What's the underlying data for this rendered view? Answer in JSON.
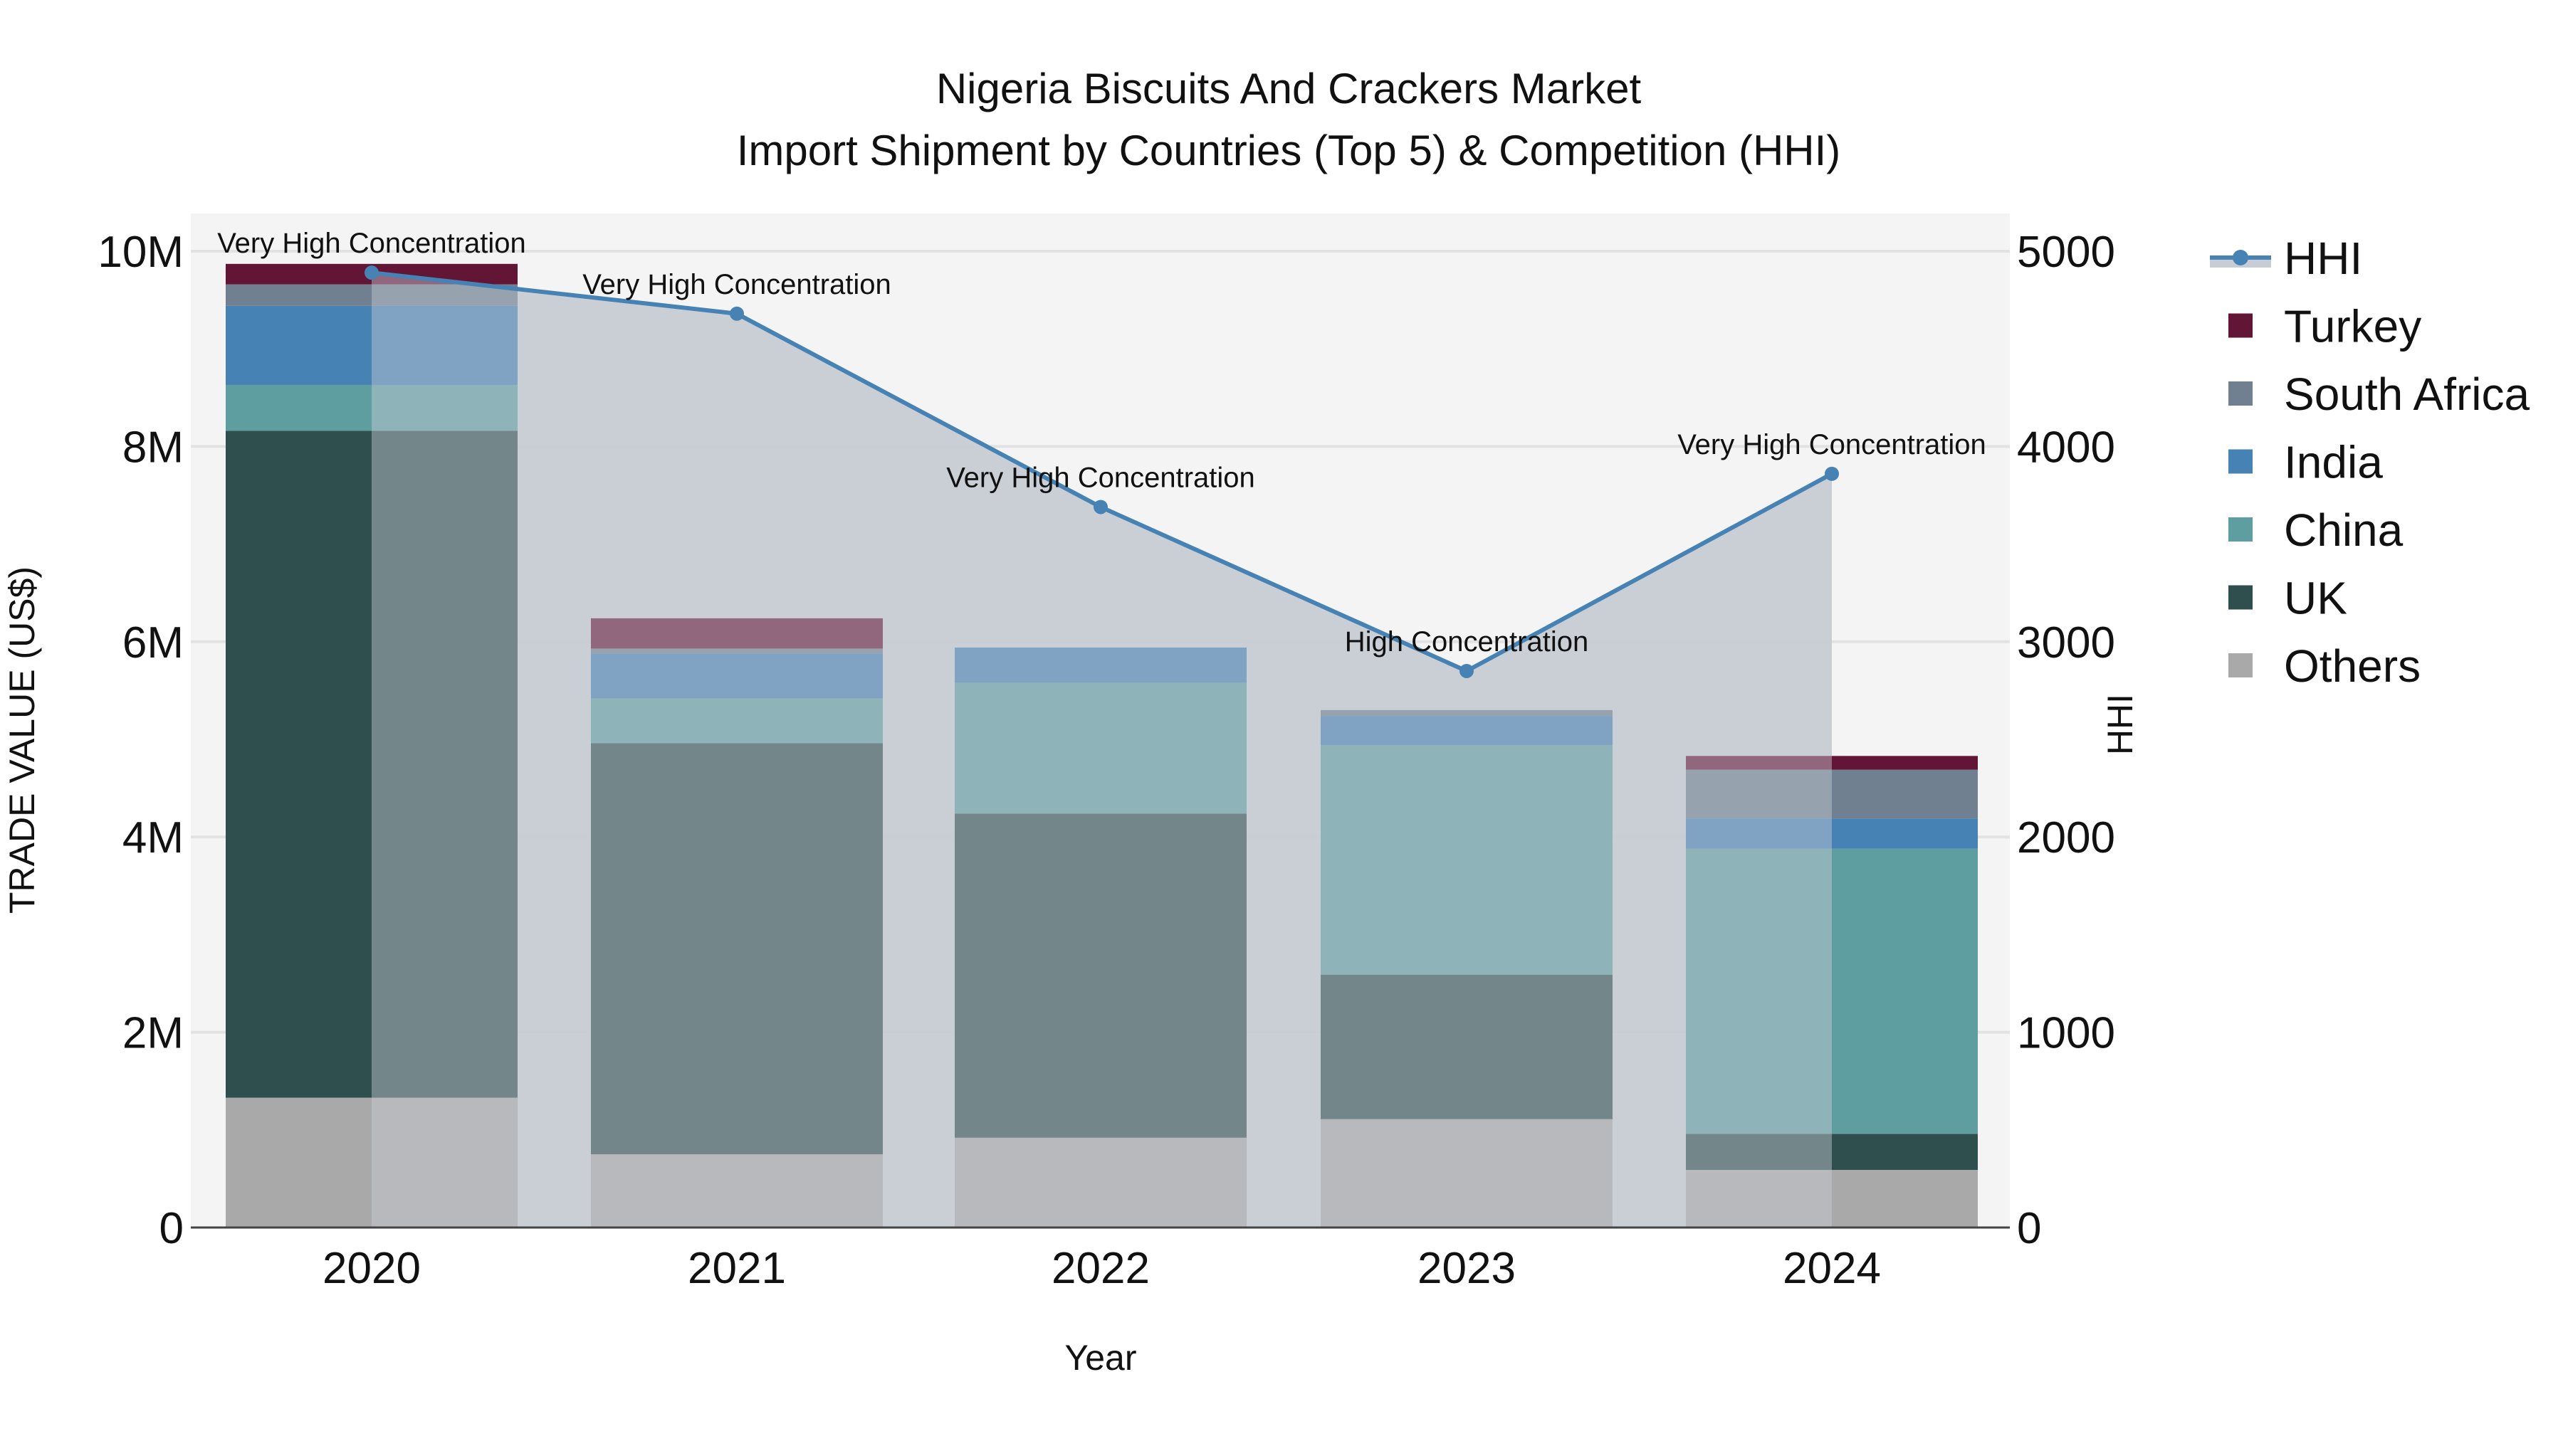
{
  "title": {
    "line1": "Nigeria Biscuits And Crackers Market",
    "line2": "Import Shipment by Countries (Top 5) & Competition (HHI)"
  },
  "axes": {
    "x_title": "Year",
    "y_left_title": "TRADE VALUE (US$)",
    "y_right_title": "HHI",
    "y_left_ticks": [
      "0",
      "2M",
      "4M",
      "6M",
      "8M",
      "10M"
    ],
    "y_right_ticks": [
      "0",
      "1000",
      "2000",
      "3000",
      "4000",
      "5000"
    ],
    "x_ticks": [
      "2020",
      "2021",
      "2022",
      "2023",
      "2024"
    ]
  },
  "legend": {
    "items": [
      {
        "label": "HHI",
        "type": "line",
        "color": "#4682B4"
      },
      {
        "label": "Turkey",
        "type": "bar",
        "color": "#631535"
      },
      {
        "label": "South Africa",
        "type": "bar",
        "color": "#708090"
      },
      {
        "label": "India",
        "type": "bar",
        "color": "#4682B4"
      },
      {
        "label": "China",
        "type": "bar",
        "color": "#5F9EA0"
      },
      {
        "label": "UK",
        "type": "bar",
        "color": "#2F4F4F"
      },
      {
        "label": "Others",
        "type": "bar",
        "color": "#A9A9A9"
      }
    ]
  },
  "annotations": [
    {
      "year": "2020",
      "text": "Very High Concentration"
    },
    {
      "year": "2021",
      "text": "Very High Concentration"
    },
    {
      "year": "2022",
      "text": "Very High Concentration"
    },
    {
      "year": "2023",
      "text": "High Concentration"
    },
    {
      "year": "2024",
      "text": "Very High Concentration"
    }
  ],
  "colors": {
    "plot_bg": "#F4F4F4",
    "hhi_area": "#C8CDD5",
    "hhi_line": "#4682B4",
    "grid": "#E2E2E2"
  },
  "chart_data": {
    "type": "bar",
    "stacked": true,
    "title": "Nigeria Biscuits And Crackers Market — Import Shipment by Countries (Top 5) & Competition (HHI)",
    "xlabel": "Year",
    "ylabel": "TRADE VALUE (US$)",
    "y2label": "HHI",
    "categories": [
      "2020",
      "2021",
      "2022",
      "2023",
      "2024"
    ],
    "ylim": [
      0,
      10300000
    ],
    "y2lim": [
      0,
      5150
    ],
    "series": [
      {
        "name": "Others",
        "color": "#A9A9A9",
        "values": [
          1330000,
          750000,
          920000,
          1110000,
          590000
        ]
      },
      {
        "name": "UK",
        "color": "#2F4F4F",
        "values": [
          6830000,
          4210000,
          3320000,
          1480000,
          370000
        ]
      },
      {
        "name": "China",
        "color": "#5F9EA0",
        "values": [
          470000,
          460000,
          1340000,
          2350000,
          2920000
        ]
      },
      {
        "name": "India",
        "color": "#4682B4",
        "values": [
          810000,
          460000,
          360000,
          300000,
          310000
        ]
      },
      {
        "name": "South Africa",
        "color": "#708090",
        "values": [
          220000,
          50000,
          0,
          60000,
          500000
        ]
      },
      {
        "name": "Turkey",
        "color": "#631535",
        "values": [
          210000,
          310000,
          0,
          0,
          140000
        ]
      }
    ],
    "line_series": {
      "name": "HHI",
      "axis": "right",
      "color": "#4682B4",
      "fill": "tozeroy",
      "values": [
        4890,
        4680,
        3690,
        2850,
        3860
      ]
    },
    "grid": true,
    "legend_position": "right"
  }
}
